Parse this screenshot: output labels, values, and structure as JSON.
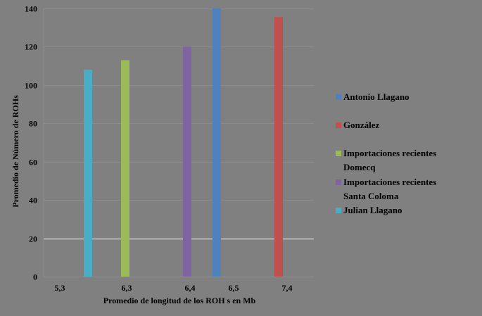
{
  "chart_data": {
    "type": "bar",
    "title": "",
    "xlabel": "Promedio de longitud de los ROH s en Mb",
    "ylabel": "Promedio de Número de ROHs",
    "ylim": [
      0,
      140
    ],
    "yticks": [
      0,
      20,
      40,
      60,
      80,
      100,
      120,
      140
    ],
    "categories": [
      "5,3",
      "6,3",
      "6,4",
      "6,5",
      "7,4"
    ],
    "series": [
      {
        "name": "Antonio Llagano",
        "color": "#4f81bd",
        "values": [
          null,
          null,
          null,
          140,
          null
        ]
      },
      {
        "name": "González",
        "color": "#c0504d",
        "values": [
          null,
          null,
          null,
          null,
          135.5
        ]
      },
      {
        "name": "Importaciones recientes Domecq",
        "color": "#9bbb59",
        "values": [
          null,
          113,
          null,
          null,
          null
        ]
      },
      {
        "name": "Importaciones recientes Santa Coloma",
        "color": "#8064a2",
        "values": [
          null,
          null,
          120,
          null,
          null
        ]
      },
      {
        "name": "Julian Llagano",
        "color": "#4bacc6",
        "values": [
          108,
          null,
          null,
          null,
          null
        ]
      }
    ],
    "grid": true,
    "legend_position": "right"
  },
  "legend": {
    "items": [
      {
        "label_line1": "Antonio Llagano",
        "label_line2": "",
        "color": "#4f81bd"
      },
      {
        "label_line1": "González",
        "label_line2": "",
        "color": "#c0504d"
      },
      {
        "label_line1": "Importaciones recientes",
        "label_line2": "Domecq",
        "color": "#9bbb59"
      },
      {
        "label_line1": "Importaciones recientes",
        "label_line2": "Santa Coloma",
        "color": "#8064a2"
      },
      {
        "label_line1": "Julian Llagano",
        "label_line2": "",
        "color": "#4bacc6"
      }
    ]
  }
}
